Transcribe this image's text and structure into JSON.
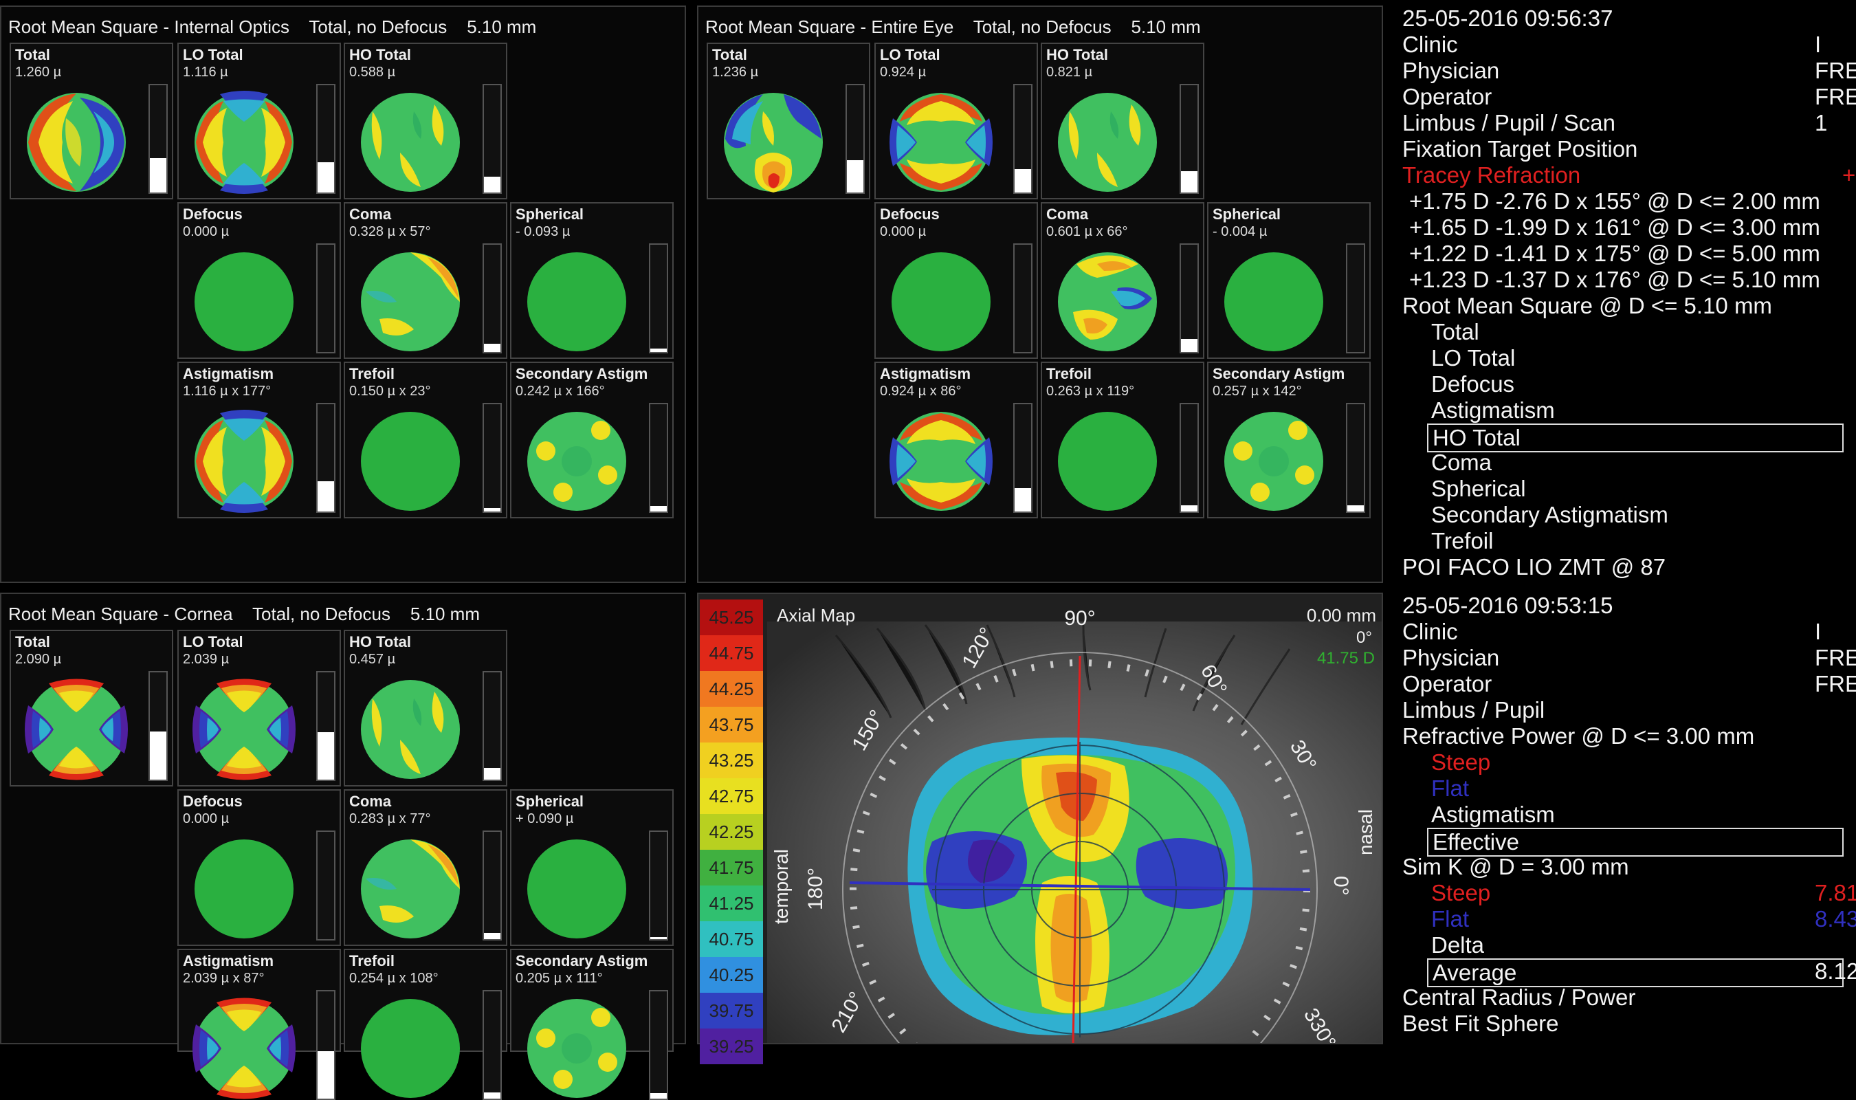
{
  "panels": {
    "internal": {
      "title": "Root Mean Square - Internal Optics    Total, no Defocus    5.10 mm",
      "cells": [
        {
          "label": "Total",
          "value": "1.260 µ",
          "bar": 0.32,
          "map": "a"
        },
        {
          "label": "LO Total",
          "value": "1.116 µ",
          "bar": 0.28,
          "map": "b"
        },
        {
          "label": "HO Total",
          "value": "0.588 µ",
          "bar": 0.15,
          "map": "c"
        },
        {
          "label": "Defocus",
          "value": "0.000 µ",
          "bar": 0.0,
          "map": "g"
        },
        {
          "label": "Coma",
          "value": "0.328 µ x 57°",
          "bar": 0.08,
          "map": "d"
        },
        {
          "label": "Spherical",
          "value": "- 0.093 µ",
          "bar": 0.03,
          "map": "g"
        },
        {
          "label": "Astigmatism",
          "value": "1.116 µ x 177°",
          "bar": 0.28,
          "map": "b"
        },
        {
          "label": "Trefoil",
          "value": "0.150 µ x 23°",
          "bar": 0.03,
          "map": "g"
        },
        {
          "label": "Secondary Astigm",
          "value": "0.242 µ x 166°",
          "bar": 0.05,
          "map": "e"
        }
      ]
    },
    "entire": {
      "title": "Root Mean Square - Entire Eye    Total, no Defocus    5.10 mm",
      "cells": [
        {
          "label": "Total",
          "value": "1.236 µ",
          "bar": 0.3,
          "map": "f"
        },
        {
          "label": "LO Total",
          "value": "0.924 µ",
          "bar": 0.22,
          "map": "b2"
        },
        {
          "label": "HO Total",
          "value": "0.821 µ",
          "bar": 0.2,
          "map": "c"
        },
        {
          "label": "Defocus",
          "value": "0.000 µ",
          "bar": 0.0,
          "map": "g"
        },
        {
          "label": "Coma",
          "value": "0.601 µ x 66°",
          "bar": 0.12,
          "map": "d2"
        },
        {
          "label": "Spherical",
          "value": "- 0.004 µ",
          "bar": 0.0,
          "map": "g"
        },
        {
          "label": "Astigmatism",
          "value": "0.924 µ x 86°",
          "bar": 0.22,
          "map": "b2"
        },
        {
          "label": "Trefoil",
          "value": "0.263 µ x 119°",
          "bar": 0.06,
          "map": "g"
        },
        {
          "label": "Secondary Astigm",
          "value": "0.257 µ x 142°",
          "bar": 0.06,
          "map": "e"
        }
      ]
    },
    "cornea": {
      "title": "Root Mean Square - Cornea    Total, no Defocus    5.10 mm",
      "cells": [
        {
          "label": "Total",
          "value": "2.090 µ",
          "bar": 0.45,
          "map": "h"
        },
        {
          "label": "LO Total",
          "value": "2.039 µ",
          "bar": 0.44,
          "map": "h"
        },
        {
          "label": "HO Total",
          "value": "0.457 µ",
          "bar": 0.11,
          "map": "c"
        },
        {
          "label": "Defocus",
          "value": "0.000 µ",
          "bar": 0.0,
          "map": "g"
        },
        {
          "label": "Coma",
          "value": "0.283 µ x 77°",
          "bar": 0.06,
          "map": "d"
        },
        {
          "label": "Spherical",
          "value": "+ 0.090 µ",
          "bar": 0.02,
          "map": "g"
        },
        {
          "label": "Astigmatism",
          "value": "2.039 µ x 87°",
          "bar": 0.44,
          "map": "h"
        },
        {
          "label": "Trefoil",
          "value": "0.254 µ x 108°",
          "bar": 0.06,
          "map": "g"
        },
        {
          "label": "Secondary Astigm",
          "value": "0.205 µ x 111°",
          "bar": 0.05,
          "map": "e"
        }
      ]
    }
  },
  "info_top": {
    "datetime": "25-05-2016   09:56:37",
    "lines": [
      "Clinic",
      "Physician",
      "Operator",
      "Limbus / Pupil / Scan",
      "Fixation Target Position"
    ],
    "right_vals": [
      "I",
      "FRE",
      "FRE",
      "1"
    ],
    "tracey": "Tracey Refraction",
    "tracey_right": "+",
    "refr": [
      "+1.75 D    -2.76 D x 155° @ D <= 2.00 mm",
      "+1.65 D    -1.99 D x 161° @ D <= 3.00 mm",
      "+1.22 D    -1.41 D x 175° @ D <= 5.00 mm",
      "+1.23 D    -1.37 D x 176° @ D <= 5.10 mm"
    ],
    "rms_header": "Root Mean Square @ D <= 5.10 mm",
    "rms_items": [
      "Total",
      "LO Total",
      "Defocus",
      "Astigmatism",
      "HO Total",
      "Coma",
      "Spherical",
      "Secondary Astigmatism",
      "Trefoil"
    ],
    "poi": "POI FACO LIO ZMT @ 87"
  },
  "info_bottom": {
    "datetime": "25-05-2016   09:53:15",
    "lines": [
      "Clinic",
      "Physician",
      "Operator",
      "Limbus / Pupil"
    ],
    "right_vals": [
      "I",
      "FRE",
      "FRE"
    ],
    "refr_power": "Refractive Power @ D <= 3.00 mm",
    "steep": "Steep",
    "flat": "Flat",
    "astig": "Astigmatism",
    "effective": "Effective",
    "simk": "Sim K @ D = 3.00 mm",
    "steep2": "Steep",
    "steep2_val": "7.81",
    "flat2": "Flat",
    "flat2_val": "8.43",
    "delta": "Delta",
    "average": "Average",
    "average_val": "8.12",
    "central": "Central Radius / Power",
    "bestfit": "Best Fit Sphere"
  },
  "axial": {
    "title": "Axial Map",
    "mm": "0.00 mm",
    "zero_deg": "0°",
    "green_val": "41.75 D",
    "angles": [
      "90°",
      "120°",
      "60°",
      "150°",
      "30°",
      "180°",
      "0°",
      "210°",
      "330°"
    ],
    "temporal": "temporal",
    "nasal": "nasal",
    "scale": [
      "45.25",
      "44.75",
      "44.25",
      "43.75",
      "43.25",
      "42.75",
      "42.25",
      "41.75",
      "41.25",
      "40.75",
      "40.25",
      "39.75",
      "39.25"
    ],
    "scale_colors": [
      "#b41010",
      "#e02818",
      "#f07820",
      "#f4a020",
      "#f0d020",
      "#e8e020",
      "#b8d020",
      "#40b040",
      "#30c070",
      "#30c0c0",
      "#3090e0",
      "#3040c0",
      "#5020a0"
    ]
  }
}
